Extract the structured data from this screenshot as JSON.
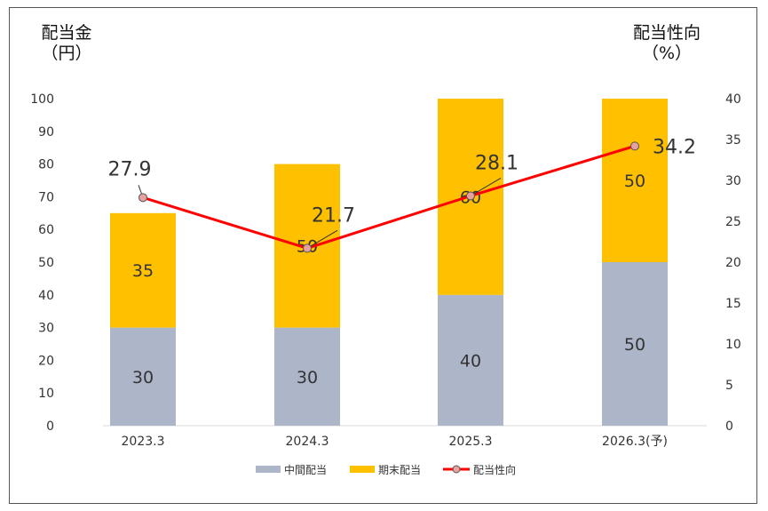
{
  "chart_data": {
    "type": "bar",
    "stacked": true,
    "categories": [
      "2023.3",
      "2024.3",
      "2025.3",
      "2026.3(予)"
    ],
    "series": [
      {
        "name": "中間配当",
        "type": "bar",
        "axis": "left",
        "color": "#ADB6C9",
        "values": [
          30,
          30,
          40,
          50
        ],
        "labels": [
          "30",
          "30",
          "40",
          "50"
        ]
      },
      {
        "name": "期末配当",
        "type": "bar",
        "axis": "left",
        "color": "#FFC000",
        "values": [
          35,
          50,
          60,
          50
        ],
        "labels": [
          "35",
          "50",
          "60",
          "50"
        ]
      },
      {
        "name": "配当性向",
        "type": "line",
        "axis": "right",
        "color": "#FF0000",
        "marker_color": "#E8A0A0",
        "values": [
          27.9,
          21.7,
          28.1,
          34.2
        ],
        "labels": [
          "27.9",
          "21.7",
          "28.1",
          "34.2"
        ]
      }
    ],
    "ylabel": [
      "配当金",
      "（円）"
    ],
    "y2label": [
      "配当性向",
      "（%）"
    ],
    "ylim": [
      0,
      100
    ],
    "y2lim": [
      0,
      40
    ],
    "yticks": [
      "0",
      "10",
      "20",
      "30",
      "40",
      "50",
      "60",
      "70",
      "80",
      "90",
      "100"
    ],
    "y2ticks": [
      "0",
      "5",
      "10",
      "15",
      "20",
      "25",
      "30",
      "35",
      "40"
    ],
    "grid": false,
    "legend_position": "bottom"
  }
}
